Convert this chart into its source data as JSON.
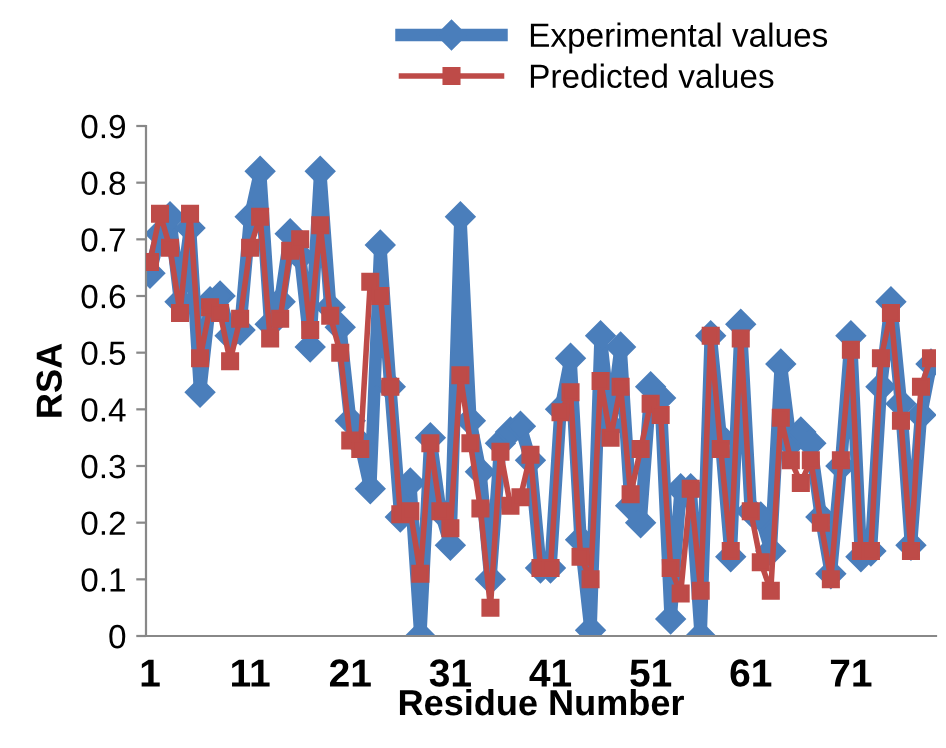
{
  "chart_data": {
    "type": "line",
    "xlabel": "Residue Number",
    "ylabel": "RSA",
    "categories": [
      "1",
      null,
      null,
      null,
      null,
      null,
      null,
      null,
      null,
      null,
      "11",
      null,
      null,
      null,
      null,
      null,
      null,
      null,
      null,
      null,
      "21",
      null,
      null,
      null,
      null,
      null,
      null,
      null,
      null,
      null,
      "31",
      null,
      null,
      null,
      null,
      null,
      null,
      null,
      null,
      null,
      "41",
      null,
      null,
      null,
      null,
      null,
      null,
      null,
      null,
      null,
      "51",
      null,
      null,
      null,
      null,
      null,
      null,
      null,
      null,
      null,
      "61",
      null,
      null,
      null,
      null,
      null,
      null,
      null,
      null,
      null,
      "71",
      null,
      null,
      null,
      null,
      null,
      null,
      null,
      null
    ],
    "series": [
      {
        "name": "Experimental values",
        "color": "#4a7ebb",
        "marker": "diamond",
        "values": [
          0.64,
          0.71,
          0.74,
          0.59,
          0.72,
          0.43,
          0.59,
          0.6,
          0.53,
          0.54,
          0.74,
          0.82,
          0.55,
          0.59,
          0.71,
          0.67,
          0.51,
          0.82,
          0.58,
          0.545,
          0.38,
          0.34,
          0.26,
          0.69,
          0.44,
          0.21,
          0.27,
          0.0,
          0.35,
          0.22,
          0.16,
          0.74,
          0.38,
          0.29,
          0.1,
          0.34,
          0.36,
          0.37,
          0.31,
          0.12,
          0.12,
          0.4,
          0.49,
          0.17,
          0.01,
          0.53,
          0.37,
          0.51,
          0.23,
          0.2,
          0.44,
          0.42,
          0.03,
          0.26,
          0.26,
          0.0,
          0.53,
          0.35,
          0.14,
          0.55,
          0.22,
          0.21,
          0.15,
          0.48,
          0.34,
          0.36,
          0.34,
          0.21,
          0.11,
          0.3,
          0.53,
          0.14,
          0.15,
          0.44,
          0.59,
          0.41,
          0.16,
          0.39,
          0.48
        ]
      },
      {
        "name": "Predicted values",
        "color": "#be4b48",
        "marker": "square",
        "values": [
          0.66,
          0.745,
          0.685,
          0.57,
          0.745,
          0.49,
          0.58,
          0.57,
          0.485,
          0.56,
          0.685,
          0.74,
          0.525,
          0.56,
          0.68,
          0.7,
          0.54,
          0.725,
          0.565,
          0.5,
          0.345,
          0.33,
          0.625,
          0.6,
          0.44,
          0.215,
          0.22,
          0.11,
          0.34,
          0.22,
          0.19,
          0.46,
          0.34,
          0.225,
          0.05,
          0.325,
          0.23,
          0.245,
          0.32,
          0.12,
          0.12,
          0.395,
          0.43,
          0.14,
          0.1,
          0.45,
          0.35,
          0.44,
          0.25,
          0.33,
          0.41,
          0.39,
          0.12,
          0.075,
          0.26,
          0.08,
          0.53,
          0.33,
          0.15,
          0.525,
          0.22,
          0.13,
          0.08,
          0.385,
          0.31,
          0.27,
          0.31,
          0.2,
          0.1,
          0.31,
          0.505,
          0.15,
          0.15,
          0.49,
          0.57,
          0.38,
          0.15,
          0.44,
          0.49
        ]
      }
    ],
    "ylim": [
      0,
      0.9
    ],
    "yticks": [
      0,
      0.1,
      0.2,
      0.3,
      0.4,
      0.5,
      0.6,
      0.7,
      0.8,
      0.9
    ],
    "grid": false,
    "legend": "top",
    "line_style": "solid"
  }
}
